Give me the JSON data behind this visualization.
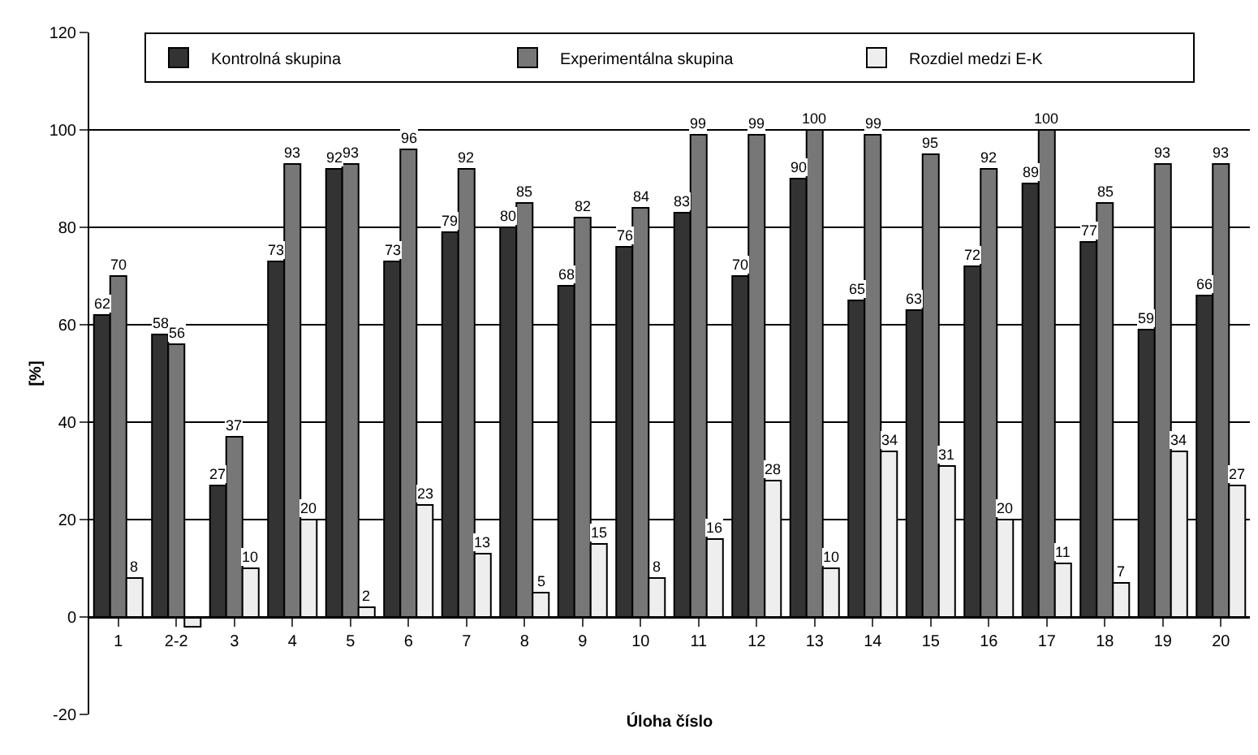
{
  "chart_data": {
    "type": "bar",
    "xlabel": "Úloha číslo",
    "ylabel": "[%]",
    "categories": [
      "1",
      "2-2",
      "3",
      "4",
      "5",
      "6",
      "7",
      "8",
      "9",
      "10",
      "11",
      "12",
      "13",
      "14",
      "15",
      "16",
      "17",
      "18",
      "19",
      "20"
    ],
    "series": [
      {
        "name": "Kontrolná skupina",
        "color": "#333333",
        "values": [
          62,
          58,
          27,
          73,
          92,
          73,
          79,
          80,
          68,
          76,
          83,
          70,
          90,
          65,
          63,
          72,
          89,
          77,
          59,
          66
        ],
        "value_labels": [
          "62",
          "58",
          "27",
          "73",
          "92",
          "73",
          "79",
          "80",
          "68",
          "76",
          "83",
          "70",
          "90",
          "65",
          "63",
          "72",
          "89",
          "77",
          "59",
          "66"
        ]
      },
      {
        "name": "Experimentálna skupina",
        "color": "#777777",
        "values": [
          70,
          56,
          37,
          93,
          93,
          96,
          92,
          85,
          82,
          84,
          99,
          99,
          100,
          99,
          95,
          92,
          100,
          85,
          93,
          93
        ],
        "value_labels": [
          "70",
          "56",
          "37",
          "93",
          "93",
          "96",
          "92",
          "85",
          "82",
          "84",
          "99",
          "99",
          "100",
          "99",
          "95",
          "92",
          "100",
          "85",
          "93",
          "93"
        ]
      },
      {
        "name": "Rozdiel medzi E-K",
        "color": "#eeeeee",
        "values": [
          8,
          -2,
          10,
          20,
          2,
          23,
          13,
          5,
          15,
          8,
          16,
          28,
          10,
          34,
          31,
          20,
          11,
          7,
          34,
          27
        ],
        "value_labels": [
          "8",
          null,
          "10",
          "20",
          "2",
          "23",
          "13",
          "5",
          "15",
          "8",
          "16",
          "28",
          "10",
          "34",
          "31",
          "20",
          "11",
          "7",
          "34",
          "27"
        ]
      }
    ],
    "ylim": [
      -20,
      120
    ],
    "yticks": [
      -20,
      0,
      20,
      40,
      60,
      80,
      100,
      120
    ],
    "grid": "y",
    "legend": "top"
  }
}
